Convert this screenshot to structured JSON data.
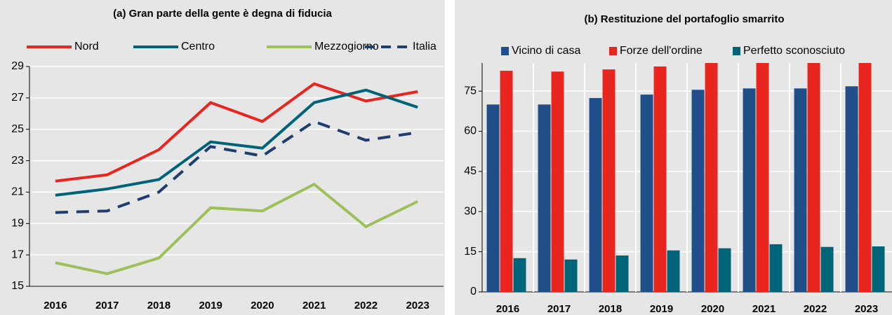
{
  "chart_data": [
    {
      "type": "line",
      "title": "(a) Gran parte della gente è degna di fiducia",
      "categories": [
        "2016",
        "2017",
        "2018",
        "2019",
        "2020",
        "2021",
        "2022",
        "2023"
      ],
      "series": [
        {
          "name": "Nord",
          "color": "#e8251f",
          "values": [
            21.7,
            22.1,
            23.7,
            26.7,
            25.5,
            27.9,
            26.8,
            27.4
          ]
        },
        {
          "name": "Centro",
          "color": "#006478",
          "values": [
            20.8,
            21.2,
            21.8,
            24.2,
            23.8,
            26.7,
            27.5,
            26.4
          ]
        },
        {
          "name": "Mezzogiorno",
          "color": "#9dc05a",
          "values": [
            16.5,
            15.8,
            16.8,
            20.0,
            19.8,
            21.5,
            18.8,
            20.4
          ]
        },
        {
          "name": "Italia",
          "color": "#1f3d6e",
          "dashed": true,
          "values": [
            19.7,
            19.8,
            21.0,
            23.9,
            23.3,
            25.5,
            24.3,
            24.8
          ]
        }
      ],
      "ylim": [
        15,
        29
      ],
      "yticks": [
        15,
        17,
        19,
        21,
        23,
        25,
        27,
        29
      ],
      "grid": true,
      "legend": "top"
    },
    {
      "type": "bar",
      "title": "(b) Restituzione del portafoglio smarrito",
      "categories": [
        "2016",
        "2017",
        "2018",
        "2019",
        "2020",
        "2021",
        "2022",
        "2023"
      ],
      "series": [
        {
          "name": "Vicino di casa",
          "color": "#1f4e89",
          "values": [
            70,
            70,
            72.4,
            73.7,
            75.5,
            76,
            76,
            76.8
          ]
        },
        {
          "name": "Forze dell'ordine",
          "color": "#e8251f",
          "values": [
            82.6,
            82.3,
            83.1,
            84.2,
            86,
            87,
            87,
            88
          ]
        },
        {
          "name": "Perfetto sconosciuto",
          "color": "#006478",
          "values": [
            12.6,
            12.1,
            13.6,
            15.5,
            16.3,
            17.8,
            16.8,
            17
          ]
        }
      ],
      "ylim": [
        0,
        85.5
      ],
      "yticks": [
        0,
        15,
        30,
        45,
        60,
        75
      ],
      "grid": true,
      "legend": "top"
    }
  ]
}
